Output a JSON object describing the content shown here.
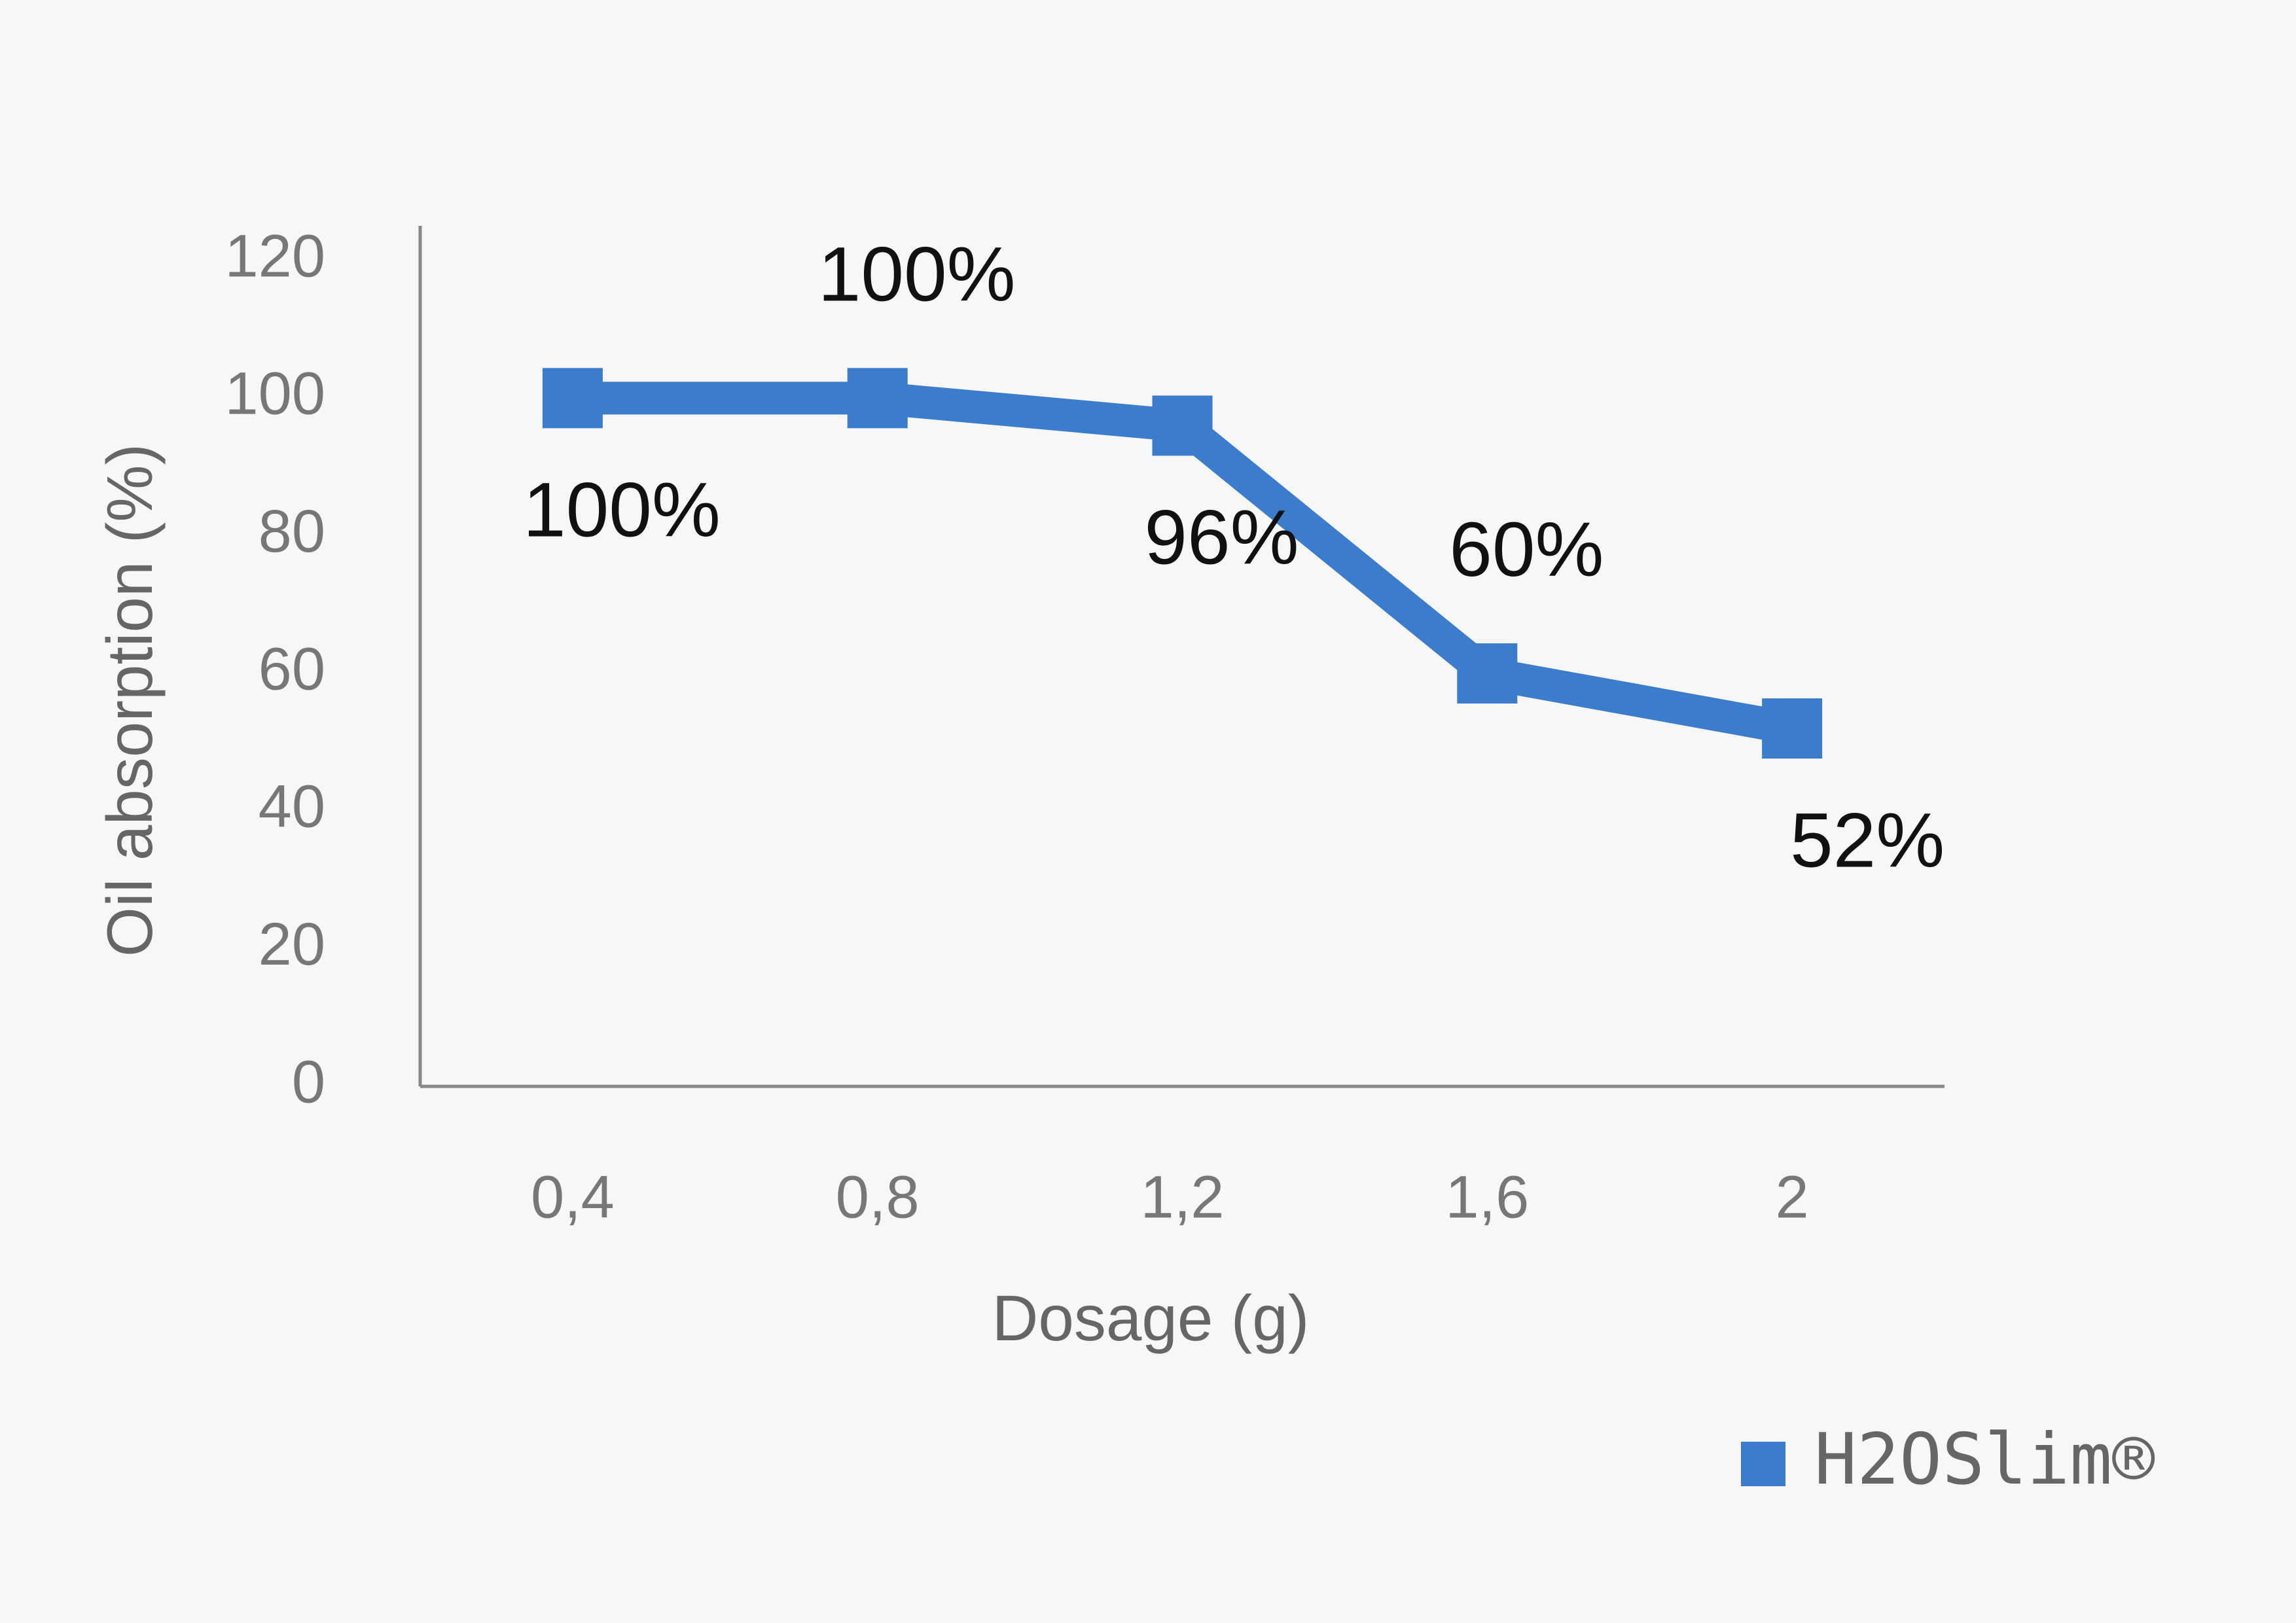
{
  "chart_data": {
    "type": "line",
    "x_label": "Dosage (g)",
    "y_label": "Oil absorption (%)",
    "categories": [
      "0,4",
      "0,8",
      "1,2",
      "1,6",
      "2"
    ],
    "series": [
      {
        "name": "H2OSlim®",
        "color": "#3b7dcc",
        "values": [
          100,
          100,
          96,
          60,
          52
        ],
        "value_labels": [
          "100%",
          "100%",
          "96%",
          "60%",
          "52%"
        ]
      }
    ],
    "ylim": [
      0,
      120
    ],
    "yticks": [
      0,
      20,
      40,
      60,
      80,
      100,
      120
    ],
    "grid": false,
    "legend": "bottom-right"
  }
}
